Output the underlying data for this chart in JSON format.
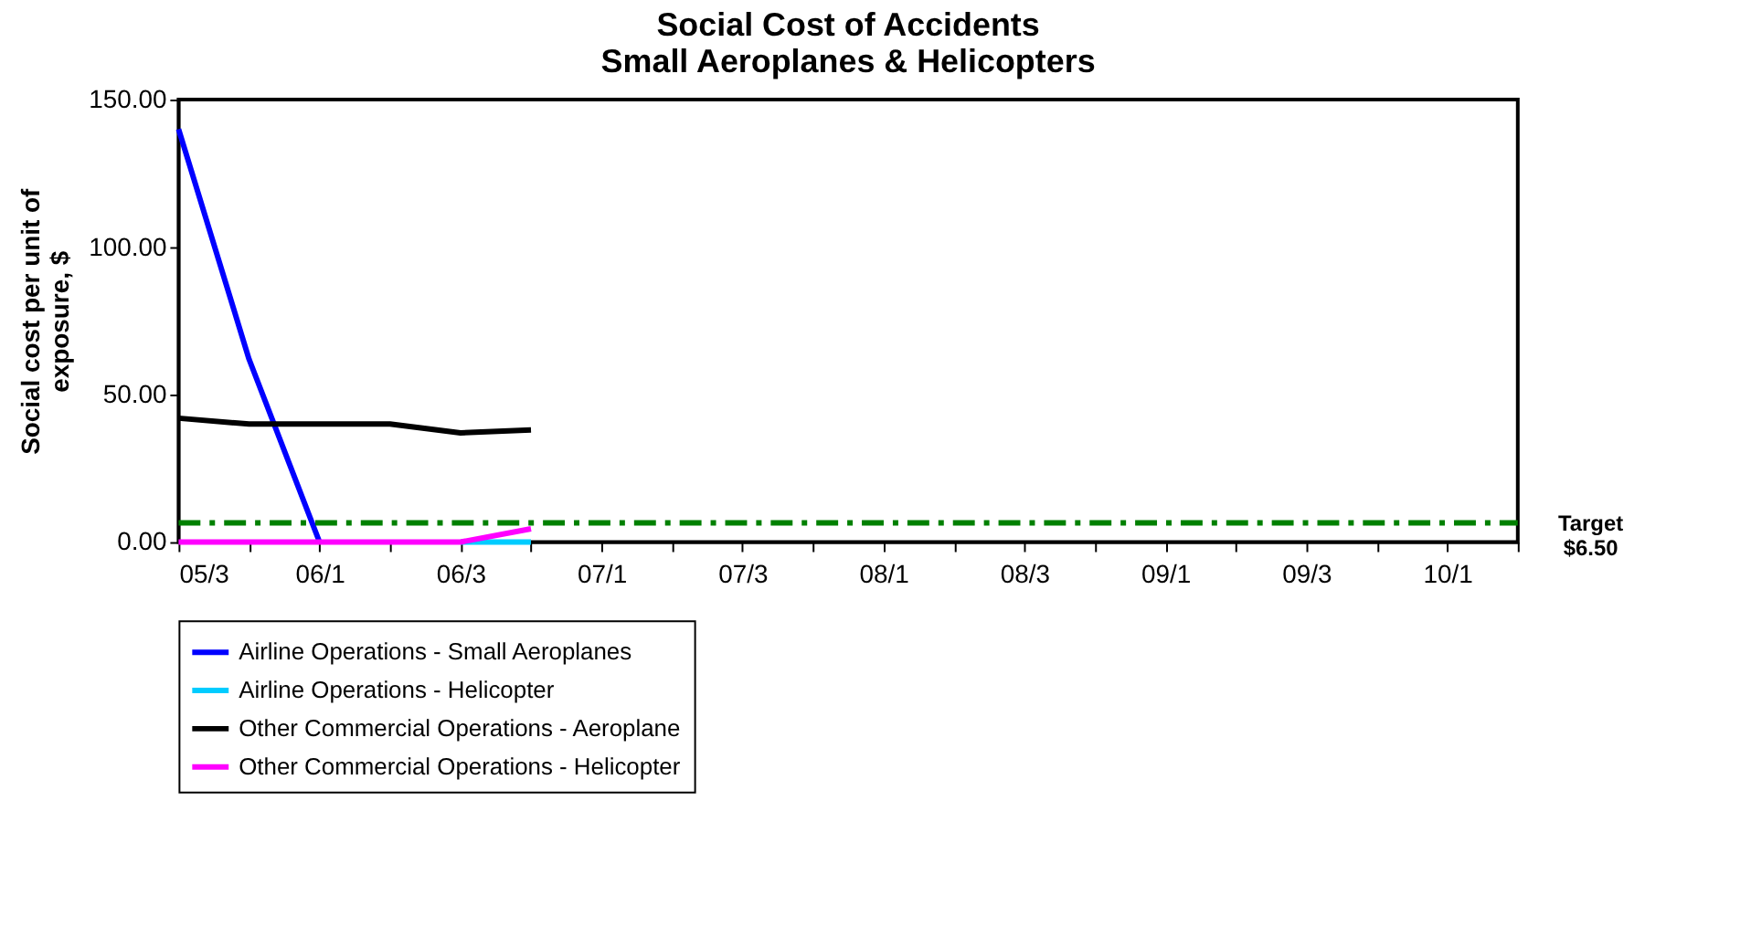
{
  "chart_data": {
    "type": "line",
    "title": "Social Cost of Accidents",
    "subtitle": "Small Aeroplanes & Helicopters",
    "ylabel": "Social cost per unit of exposure, $",
    "categories": [
      "05/3",
      null,
      "06/1",
      null,
      "06/3",
      null,
      "07/1",
      null,
      "07/3",
      null,
      "08/1",
      null,
      "08/3",
      null,
      "09/1",
      null,
      "09/3",
      null,
      "10/1",
      null
    ],
    "series": [
      {
        "name": "Airline Operations - Small Aeroplanes",
        "color": "#0000ff",
        "values": [
          140,
          62,
          0,
          null,
          null,
          null,
          null,
          null,
          null,
          null,
          null,
          null,
          null,
          null,
          null,
          null,
          null,
          null,
          null,
          null
        ]
      },
      {
        "name": "Airline Operations - Helicopter",
        "color": "#00ccff",
        "values": [
          null,
          null,
          null,
          null,
          0,
          0,
          null,
          null,
          null,
          null,
          null,
          null,
          null,
          null,
          null,
          null,
          null,
          null,
          null,
          null
        ]
      },
      {
        "name": "Other Commercial Operations - Aeroplane",
        "color": "#000000",
        "values": [
          42,
          40,
          40,
          40,
          37,
          38,
          null,
          null,
          null,
          null,
          null,
          null,
          null,
          null,
          null,
          null,
          null,
          null,
          null,
          null
        ]
      },
      {
        "name": "Other Commercial Operations - Helicopter",
        "color": "#ff00ff",
        "values": [
          0,
          0,
          0,
          0,
          0,
          4.5,
          null,
          null,
          null,
          null,
          null,
          null,
          null,
          null,
          null,
          null,
          null,
          null,
          null,
          null
        ]
      }
    ],
    "ylim": [
      0,
      150
    ],
    "yticks": [
      {
        "value": 0,
        "label": "0.00"
      },
      {
        "value": 50,
        "label": "50.00"
      },
      {
        "value": 100,
        "label": "100.00"
      },
      {
        "value": 150,
        "label": "150.00"
      }
    ],
    "ref_lines": [
      {
        "axis": "y",
        "value": 6.5,
        "label": "Target\n$6.50",
        "color": "#008000",
        "line_style": "dashdot"
      }
    ],
    "grid": false,
    "legend": "bottom",
    "marker": "none",
    "line_style": "solid"
  }
}
